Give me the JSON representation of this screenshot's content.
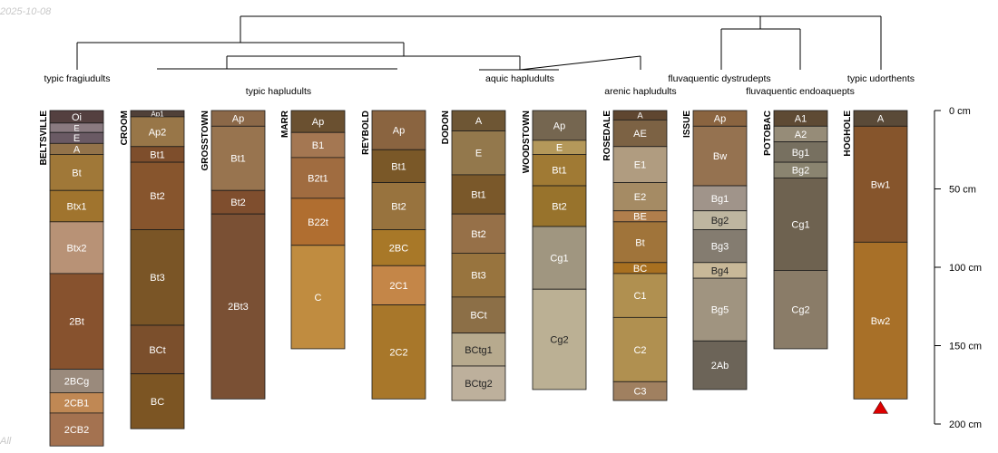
{
  "corner_text": {
    "date": "2025-10-08",
    "footer": "All"
  },
  "chart_data": {
    "type": "soil-profile-sketch",
    "title": "",
    "depth_axis": {
      "unit": "cm",
      "range": [
        0,
        200
      ],
      "ticks": [
        {
          "value": 0,
          "label": "0 cm"
        },
        {
          "value": 50,
          "label": "50 cm"
        },
        {
          "value": 100,
          "label": "100 cm"
        },
        {
          "value": 150,
          "label": "150 cm"
        },
        {
          "value": 200,
          "label": "200 cm"
        }
      ]
    },
    "profiles": [
      {
        "name": "BELTSVILLE",
        "horizons": [
          {
            "name": "Oi",
            "top": 0,
            "bottom": 8,
            "color": "#544040"
          },
          {
            "name": "E",
            "top": 8,
            "bottom": 14,
            "color": "#8a7a80"
          },
          {
            "name": "E",
            "top": 14,
            "bottom": 21,
            "color": "#6a5a64"
          },
          {
            "name": "A",
            "top": 21,
            "bottom": 28,
            "color": "#93734a"
          },
          {
            "name": "Bt",
            "top": 28,
            "bottom": 51,
            "color": "#a07838"
          },
          {
            "name": "Btx1",
            "top": 51,
            "bottom": 71,
            "color": "#a0742e"
          },
          {
            "name": "Btx2",
            "top": 71,
            "bottom": 104,
            "color": "#b89276"
          },
          {
            "name": "2Bt",
            "top": 104,
            "bottom": 165,
            "color": "#87522e"
          },
          {
            "name": "2BCg",
            "top": 165,
            "bottom": 180,
            "color": "#9a8a7c"
          },
          {
            "name": "2CB1",
            "top": 180,
            "bottom": 193,
            "color": "#c08854"
          },
          {
            "name": "2CB2",
            "top": 193,
            "bottom": 214,
            "color": "#a47250"
          }
        ]
      },
      {
        "name": "CROOM",
        "horizons": [
          {
            "name": "Ap1",
            "top": 0,
            "bottom": 4,
            "color": "#504038"
          },
          {
            "name": "Ap2",
            "top": 4,
            "bottom": 23,
            "color": "#987648"
          },
          {
            "name": "Bt1",
            "top": 23,
            "bottom": 33,
            "color": "#7e4e2c"
          },
          {
            "name": "Bt2",
            "top": 33,
            "bottom": 76,
            "color": "#87552d"
          },
          {
            "name": "Bt3",
            "top": 76,
            "bottom": 137,
            "color": "#7a5526"
          },
          {
            "name": "BCt",
            "top": 137,
            "bottom": 168,
            "color": "#7b4f2c"
          },
          {
            "name": "BC",
            "top": 168,
            "bottom": 203,
            "color": "#7c5523"
          }
        ]
      },
      {
        "name": "GROSSTOWN",
        "horizons": [
          {
            "name": "Ap",
            "top": 0,
            "bottom": 10,
            "color": "#8b6848"
          },
          {
            "name": "Bt1",
            "top": 10,
            "bottom": 51,
            "color": "#98744f"
          },
          {
            "name": "Bt2",
            "top": 51,
            "bottom": 66,
            "color": "#7f4e2e"
          },
          {
            "name": "2Bt3",
            "top": 66,
            "bottom": 184,
            "color": "#7a5034"
          }
        ]
      },
      {
        "name": "MARR",
        "horizons": [
          {
            "name": "Ap",
            "top": 0,
            "bottom": 14,
            "color": "#6a5030"
          },
          {
            "name": "B1",
            "top": 14,
            "bottom": 30,
            "color": "#a47752"
          },
          {
            "name": "B2t1",
            "top": 30,
            "bottom": 56,
            "color": "#a06c40"
          },
          {
            "name": "B22t",
            "top": 56,
            "bottom": 86,
            "color": "#b06e30"
          },
          {
            "name": "C",
            "top": 86,
            "bottom": 152,
            "color": "#c08c40"
          }
        ]
      },
      {
        "name": "REYBOLD",
        "horizons": [
          {
            "name": "Ap",
            "top": 0,
            "bottom": 25,
            "color": "#8a6440"
          },
          {
            "name": "Bt1",
            "top": 25,
            "bottom": 46,
            "color": "#7a5828"
          },
          {
            "name": "Bt2",
            "top": 46,
            "bottom": 76,
            "color": "#98733e"
          },
          {
            "name": "2BC",
            "top": 76,
            "bottom": 99,
            "color": "#a87828"
          },
          {
            "name": "2C1",
            "top": 99,
            "bottom": 124,
            "color": "#c48648"
          },
          {
            "name": "2C2",
            "top": 124,
            "bottom": 184,
            "color": "#a8772a"
          }
        ]
      },
      {
        "name": "DODON",
        "horizons": [
          {
            "name": "A",
            "top": 0,
            "bottom": 13,
            "color": "#6e5634"
          },
          {
            "name": "E",
            "top": 13,
            "bottom": 41,
            "color": "#93784c"
          },
          {
            "name": "Bt1",
            "top": 41,
            "bottom": 66,
            "color": "#7a582a"
          },
          {
            "name": "Bt2",
            "top": 66,
            "bottom": 91,
            "color": "#967048"
          },
          {
            "name": "Bt3",
            "top": 91,
            "bottom": 119,
            "color": "#98743e"
          },
          {
            "name": "BCt",
            "top": 119,
            "bottom": 142,
            "color": "#8c6f47"
          },
          {
            "name": "BCtg1",
            "top": 142,
            "bottom": 163,
            "color": "#b7aa8e"
          },
          {
            "name": "BCtg2",
            "top": 163,
            "bottom": 185,
            "color": "#bdb09c"
          }
        ]
      },
      {
        "name": "WOODSTOWN",
        "horizons": [
          {
            "name": "Ap",
            "top": 0,
            "bottom": 19,
            "color": "#756650"
          },
          {
            "name": "E",
            "top": 19,
            "bottom": 28,
            "color": "#b4985a"
          },
          {
            "name": "Bt1",
            "top": 28,
            "bottom": 48,
            "color": "#a07a34"
          },
          {
            "name": "Bt2",
            "top": 48,
            "bottom": 74,
            "color": "#98732c"
          },
          {
            "name": "Cg1",
            "top": 74,
            "bottom": 114,
            "color": "#a09680"
          },
          {
            "name": "Cg2",
            "top": 114,
            "bottom": 178,
            "color": "#bbb094"
          }
        ]
      },
      {
        "name": "ROSEDALE",
        "horizons": [
          {
            "name": "A",
            "top": 0,
            "bottom": 6,
            "color": "#5f4630"
          },
          {
            "name": "AE",
            "top": 6,
            "bottom": 23,
            "color": "#7c6244"
          },
          {
            "name": "E1",
            "top": 23,
            "bottom": 46,
            "color": "#b09c80"
          },
          {
            "name": "E2",
            "top": 46,
            "bottom": 64,
            "color": "#a58b64"
          },
          {
            "name": "BE",
            "top": 64,
            "bottom": 71,
            "color": "#b07e4c"
          },
          {
            "name": "Bt",
            "top": 71,
            "bottom": 97,
            "color": "#a0743a"
          },
          {
            "name": "BC",
            "top": 97,
            "bottom": 104,
            "color": "#a87020"
          },
          {
            "name": "C1",
            "top": 104,
            "bottom": 132,
            "color": "#b09050"
          },
          {
            "name": "C2",
            "top": 132,
            "bottom": 173,
            "color": "#b09050"
          },
          {
            "name": "C3",
            "top": 173,
            "bottom": 185,
            "color": "#a08060"
          }
        ]
      },
      {
        "name": "ISSUE",
        "horizons": [
          {
            "name": "Ap",
            "top": 0,
            "bottom": 10,
            "color": "#8a6440"
          },
          {
            "name": "Bw",
            "top": 10,
            "bottom": 48,
            "color": "#957250"
          },
          {
            "name": "Bg1",
            "top": 48,
            "bottom": 64,
            "color": "#a0948a"
          },
          {
            "name": "Bg2",
            "top": 64,
            "bottom": 76,
            "color": "#beb6a0"
          },
          {
            "name": "Bg3",
            "top": 76,
            "bottom": 97,
            "color": "#847c70"
          },
          {
            "name": "Bg4",
            "top": 97,
            "bottom": 107,
            "color": "#c8b898"
          },
          {
            "name": "Bg5",
            "top": 107,
            "bottom": 147,
            "color": "#a09480"
          },
          {
            "name": "2Ab",
            "top": 147,
            "bottom": 178,
            "color": "#6c6458"
          }
        ]
      },
      {
        "name": "POTOBAC",
        "horizons": [
          {
            "name": "A1",
            "top": 0,
            "bottom": 10,
            "color": "#5e4a34"
          },
          {
            "name": "A2",
            "top": 10,
            "bottom": 20,
            "color": "#968c78"
          },
          {
            "name": "Bg1",
            "top": 20,
            "bottom": 33,
            "color": "#777060"
          },
          {
            "name": "Bg2",
            "top": 33,
            "bottom": 43,
            "color": "#8a8470"
          },
          {
            "name": "Cg1",
            "top": 43,
            "bottom": 102,
            "color": "#6e6250"
          },
          {
            "name": "Cg2",
            "top": 102,
            "bottom": 152,
            "color": "#8a7c68"
          }
        ]
      },
      {
        "name": "HOGHOLE",
        "horizons": [
          {
            "name": "A",
            "top": 0,
            "bottom": 10,
            "color": "#5a4a38"
          },
          {
            "name": "Bw1",
            "top": 10,
            "bottom": 84,
            "color": "#86552c"
          },
          {
            "name": "Bw2",
            "top": 84,
            "bottom": 184,
            "color": "#a87028"
          }
        ],
        "marker": {
          "symbol": "triangle",
          "depth": 184,
          "color": "#dd0000"
        }
      }
    ],
    "dendrogram_labels": [
      "typic fragiudults",
      "typic hapludults",
      "aquic hapludults",
      "arenic hapludults",
      "fluvaquentic dystrudepts",
      "fluvaquentic endoaquepts",
      "typic udorthents"
    ]
  }
}
